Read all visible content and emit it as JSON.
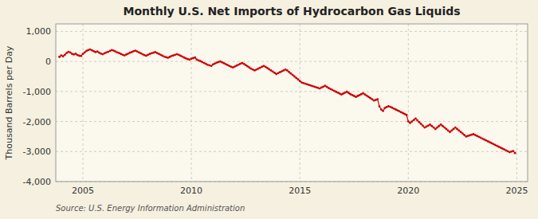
{
  "chart_data": {
    "type": "line",
    "title": "Monthly U.S. Net Imports of Hydrocarbon Gas Liquids",
    "ylabel": "Thousand Barrels per Day",
    "source": "Source: U.S. Energy Information Administration",
    "color": "#cc0000",
    "marker": "circle",
    "grid": true,
    "xlim": [
      2003.75,
      2025.5
    ],
    "ylim": [
      -4000,
      1250
    ],
    "xticks": [
      2005,
      2010,
      2015,
      2020,
      2025
    ],
    "yticks": [
      {
        "value": -4000,
        "label": "-4,000"
      },
      {
        "value": -3000,
        "label": "-3,000"
      },
      {
        "value": -2000,
        "label": "-2,000"
      },
      {
        "value": -1000,
        "label": "-1,000"
      },
      0,
      {
        "value": 1000,
        "label": "1,000"
      }
    ],
    "x": [
      2003.917,
      2004.0,
      2004.083,
      2004.167,
      2004.25,
      2004.333,
      2004.417,
      2004.5,
      2004.583,
      2004.667,
      2004.75,
      2004.833,
      2004.917,
      2005.0,
      2005.083,
      2005.167,
      2005.25,
      2005.333,
      2005.417,
      2005.5,
      2005.583,
      2005.667,
      2005.75,
      2005.833,
      2005.917,
      2006.0,
      2006.083,
      2006.167,
      2006.25,
      2006.333,
      2006.417,
      2006.5,
      2006.583,
      2006.667,
      2006.75,
      2006.833,
      2006.917,
      2007.0,
      2007.083,
      2007.167,
      2007.25,
      2007.333,
      2007.417,
      2007.5,
      2007.583,
      2007.667,
      2007.75,
      2007.833,
      2007.917,
      2008.0,
      2008.083,
      2008.167,
      2008.25,
      2008.333,
      2008.417,
      2008.5,
      2008.583,
      2008.667,
      2008.75,
      2008.833,
      2008.917,
      2009.0,
      2009.083,
      2009.167,
      2009.25,
      2009.333,
      2009.417,
      2009.5,
      2009.583,
      2009.667,
      2009.75,
      2009.833,
      2009.917,
      2010.0,
      2010.083,
      2010.167,
      2010.25,
      2010.333,
      2010.417,
      2010.5,
      2010.583,
      2010.667,
      2010.75,
      2010.833,
      2010.917,
      2011.0,
      2011.083,
      2011.167,
      2011.25,
      2011.333,
      2011.417,
      2011.5,
      2011.583,
      2011.667,
      2011.75,
      2011.833,
      2011.917,
      2012.0,
      2012.083,
      2012.167,
      2012.25,
      2012.333,
      2012.417,
      2012.5,
      2012.583,
      2012.667,
      2012.75,
      2012.833,
      2012.917,
      2013.0,
      2013.083,
      2013.167,
      2013.25,
      2013.333,
      2013.417,
      2013.5,
      2013.583,
      2013.667,
      2013.75,
      2013.833,
      2013.917,
      2014.0,
      2014.083,
      2014.167,
      2014.25,
      2014.333,
      2014.417,
      2014.5,
      2014.583,
      2014.667,
      2014.75,
      2014.833,
      2014.917,
      2015.0,
      2015.083,
      2015.167,
      2015.25,
      2015.333,
      2015.417,
      2015.5,
      2015.583,
      2015.667,
      2015.75,
      2015.833,
      2015.917,
      2016.0,
      2016.083,
      2016.167,
      2016.25,
      2016.333,
      2016.417,
      2016.5,
      2016.583,
      2016.667,
      2016.75,
      2016.833,
      2016.917,
      2017.0,
      2017.083,
      2017.167,
      2017.25,
      2017.333,
      2017.417,
      2017.5,
      2017.583,
      2017.667,
      2017.75,
      2017.833,
      2017.917,
      2018.0,
      2018.083,
      2018.167,
      2018.25,
      2018.333,
      2018.417,
      2018.5,
      2018.583,
      2018.667,
      2018.75,
      2018.833,
      2018.917,
      2019.0,
      2019.083,
      2019.167,
      2019.25,
      2019.333,
      2019.417,
      2019.5,
      2019.583,
      2019.667,
      2019.75,
      2019.833,
      2019.917,
      2020.0,
      2020.083,
      2020.167,
      2020.25,
      2020.333,
      2020.417,
      2020.5,
      2020.583,
      2020.667,
      2020.75,
      2020.833,
      2020.917,
      2021.0,
      2021.083,
      2021.167,
      2021.25,
      2021.333,
      2021.417,
      2021.5,
      2021.583,
      2021.667,
      2021.75,
      2021.833,
      2021.917,
      2022.0,
      2022.083,
      2022.167,
      2022.25,
      2022.333,
      2022.417,
      2022.5,
      2022.583,
      2022.667,
      2022.75,
      2022.833,
      2022.917,
      2023.0,
      2023.083,
      2023.167,
      2023.25,
      2023.333,
      2023.417,
      2023.5,
      2023.583,
      2023.667,
      2023.75,
      2023.833,
      2023.917,
      2024.0,
      2024.083,
      2024.167,
      2024.25,
      2024.333,
      2024.417,
      2024.5,
      2024.583,
      2024.667,
      2024.75,
      2024.833,
      2024.917
    ],
    "values": [
      150,
      200,
      170,
      220,
      280,
      320,
      300,
      250,
      230,
      260,
      210,
      190,
      180,
      250,
      300,
      350,
      380,
      400,
      370,
      340,
      310,
      330,
      290,
      260,
      240,
      270,
      300,
      320,
      350,
      380,
      360,
      330,
      300,
      280,
      250,
      220,
      200,
      230,
      260,
      290,
      310,
      340,
      360,
      330,
      300,
      270,
      240,
      210,
      190,
      220,
      250,
      270,
      290,
      310,
      280,
      250,
      220,
      190,
      160,
      140,
      120,
      150,
      180,
      200,
      220,
      240,
      220,
      190,
      160,
      130,
      100,
      80,
      60,
      90,
      110,
      130,
      60,
      30,
      10,
      -20,
      -50,
      -80,
      -110,
      -130,
      -150,
      -100,
      -70,
      -40,
      -20,
      0,
      -30,
      -60,
      -90,
      -120,
      -150,
      -180,
      -200,
      -170,
      -140,
      -110,
      -80,
      -50,
      -80,
      -120,
      -160,
      -200,
      -240,
      -270,
      -300,
      -270,
      -240,
      -210,
      -180,
      -150,
      -180,
      -220,
      -260,
      -300,
      -340,
      -380,
      -420,
      -390,
      -360,
      -330,
      -300,
      -270,
      -300,
      -350,
      -400,
      -450,
      -500,
      -550,
      -600,
      -650,
      -700,
      -720,
      -740,
      -760,
      -780,
      -800,
      -820,
      -840,
      -860,
      -880,
      -900,
      -870,
      -840,
      -810,
      -850,
      -890,
      -920,
      -950,
      -980,
      -1010,
      -1040,
      -1070,
      -1100,
      -1070,
      -1040,
      -1010,
      -1050,
      -1090,
      -1120,
      -1150,
      -1180,
      -1150,
      -1120,
      -1090,
      -1060,
      -1100,
      -1140,
      -1180,
      -1220,
      -1260,
      -1300,
      -1280,
      -1260,
      -1500,
      -1600,
      -1650,
      -1550,
      -1520,
      -1490,
      -1510,
      -1540,
      -1570,
      -1600,
      -1630,
      -1660,
      -1690,
      -1720,
      -1750,
      -1780,
      -2000,
      -2050,
      -2000,
      -1950,
      -1900,
      -1960,
      -2020,
      -2080,
      -2140,
      -2200,
      -2170,
      -2140,
      -2100,
      -2150,
      -2200,
      -2250,
      -2200,
      -2150,
      -2100,
      -2150,
      -2200,
      -2250,
      -2300,
      -2350,
      -2300,
      -2250,
      -2200,
      -2250,
      -2300,
      -2350,
      -2400,
      -2450,
      -2500,
      -2480,
      -2460,
      -2440,
      -2420,
      -2450,
      -2480,
      -2510,
      -2540,
      -2570,
      -2600,
      -2630,
      -2660,
      -2690,
      -2720,
      -2750,
      -2780,
      -2810,
      -2840,
      -2870,
      -2900,
      -2930,
      -2960,
      -2990,
      -3020,
      -3000,
      -2980,
      -3050
    ]
  }
}
